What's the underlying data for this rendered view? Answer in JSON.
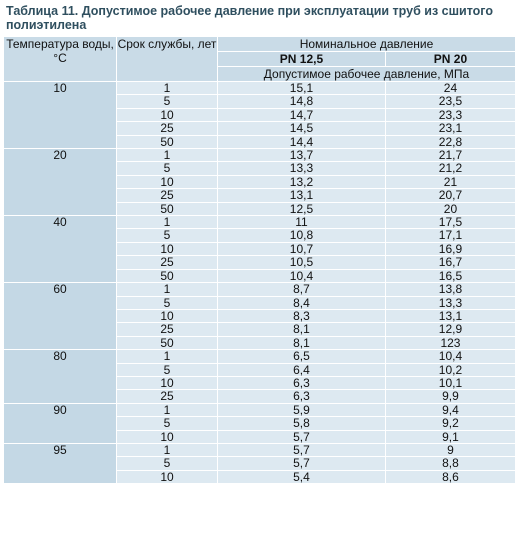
{
  "title": "Таблица 11. Допустимое рабочее давление при эксплуатации труб из сшитого полиэтилена",
  "header": {
    "temperature": "Температура воды, °С",
    "service_life": "Срок службы, лет",
    "nominal": "Номинальное давление",
    "pn1": "PN 12,5",
    "pn2": "PN 20",
    "allowed": "Допустимое рабочее давление, МПа"
  },
  "groups": [
    {
      "temperature": "10",
      "rows": [
        [
          "1",
          "15,1",
          "24"
        ],
        [
          "5",
          "14,8",
          "23,5"
        ],
        [
          "10",
          "14,7",
          "23,3"
        ],
        [
          "25",
          "14,5",
          "23,1"
        ],
        [
          "50",
          "14,4",
          "22,8"
        ]
      ]
    },
    {
      "temperature": "20",
      "rows": [
        [
          "1",
          "13,7",
          "21,7"
        ],
        [
          "5",
          "13,3",
          "21,2"
        ],
        [
          "10",
          "13,2",
          "21"
        ],
        [
          "25",
          "13,1",
          "20,7"
        ],
        [
          "50",
          "12,5",
          "20"
        ]
      ]
    },
    {
      "temperature": "40",
      "rows": [
        [
          "1",
          "11",
          "17,5"
        ],
        [
          "5",
          "10,8",
          "17,1"
        ],
        [
          "10",
          "10,7",
          "16,9"
        ],
        [
          "25",
          "10,5",
          "16,7"
        ],
        [
          "50",
          "10,4",
          "16,5"
        ]
      ]
    },
    {
      "temperature": "60",
      "rows": [
        [
          "1",
          "8,7",
          "13,8"
        ],
        [
          "5",
          "8,4",
          "13,3"
        ],
        [
          "10",
          "8,3",
          "13,1"
        ],
        [
          "25",
          "8,1",
          "12,9"
        ],
        [
          "50",
          "8,1",
          "123"
        ]
      ]
    },
    {
      "temperature": "80",
      "rows": [
        [
          "1",
          "6,5",
          "10,4"
        ],
        [
          "5",
          "6,4",
          "10,2"
        ],
        [
          "10",
          "6,3",
          "10,1"
        ],
        [
          "25",
          "6,3",
          "9,9"
        ]
      ]
    },
    {
      "temperature": "90",
      "rows": [
        [
          "1",
          "5,9",
          "9,4"
        ],
        [
          "5",
          "5,8",
          "9,2"
        ],
        [
          "10",
          "5,7",
          "9,1"
        ]
      ]
    },
    {
      "temperature": "95",
      "rows": [
        [
          "1",
          "5,7",
          "9"
        ],
        [
          "5",
          "5,7",
          "8,8"
        ],
        [
          "10",
          "5,4",
          "8,6"
        ]
      ]
    }
  ]
}
